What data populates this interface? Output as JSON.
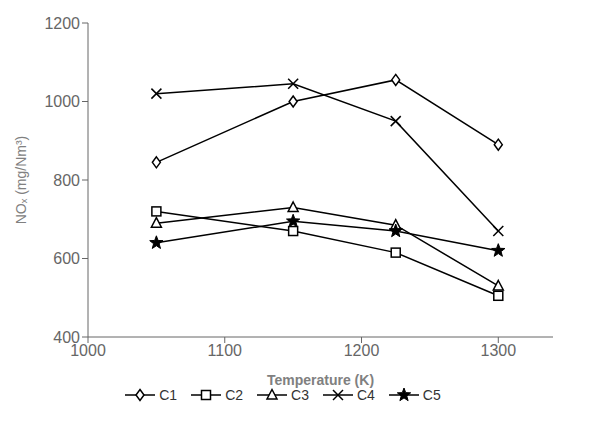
{
  "chart_data": {
    "type": "line",
    "x": [
      1050,
      1150,
      1225,
      1300
    ],
    "series": [
      {
        "name": "C1",
        "values": [
          845,
          1000,
          1055,
          890
        ],
        "marker": "diamond",
        "color": "black"
      },
      {
        "name": "C2",
        "values": [
          720,
          670,
          615,
          505
        ],
        "marker": "square",
        "color": "black"
      },
      {
        "name": "C3",
        "values": [
          690,
          730,
          685,
          530
        ],
        "marker": "triangle",
        "color": "black"
      },
      {
        "name": "C4",
        "values": [
          1020,
          1045,
          950,
          670
        ],
        "marker": "x",
        "color": "black"
      },
      {
        "name": "C5",
        "values": [
          640,
          695,
          670,
          620
        ],
        "marker": "star",
        "color": "black"
      }
    ],
    "xlabel": "Temperature (K)",
    "ylabel": "NOₓ (mg/Nm³)",
    "xlim": [
      1000,
      1340
    ],
    "ylim": [
      400,
      1200
    ],
    "xticks": [
      1000,
      1100,
      1200,
      1300
    ],
    "yticks": [
      400,
      600,
      800,
      1000,
      1200
    ],
    "grid": false,
    "legend": "bottom"
  }
}
